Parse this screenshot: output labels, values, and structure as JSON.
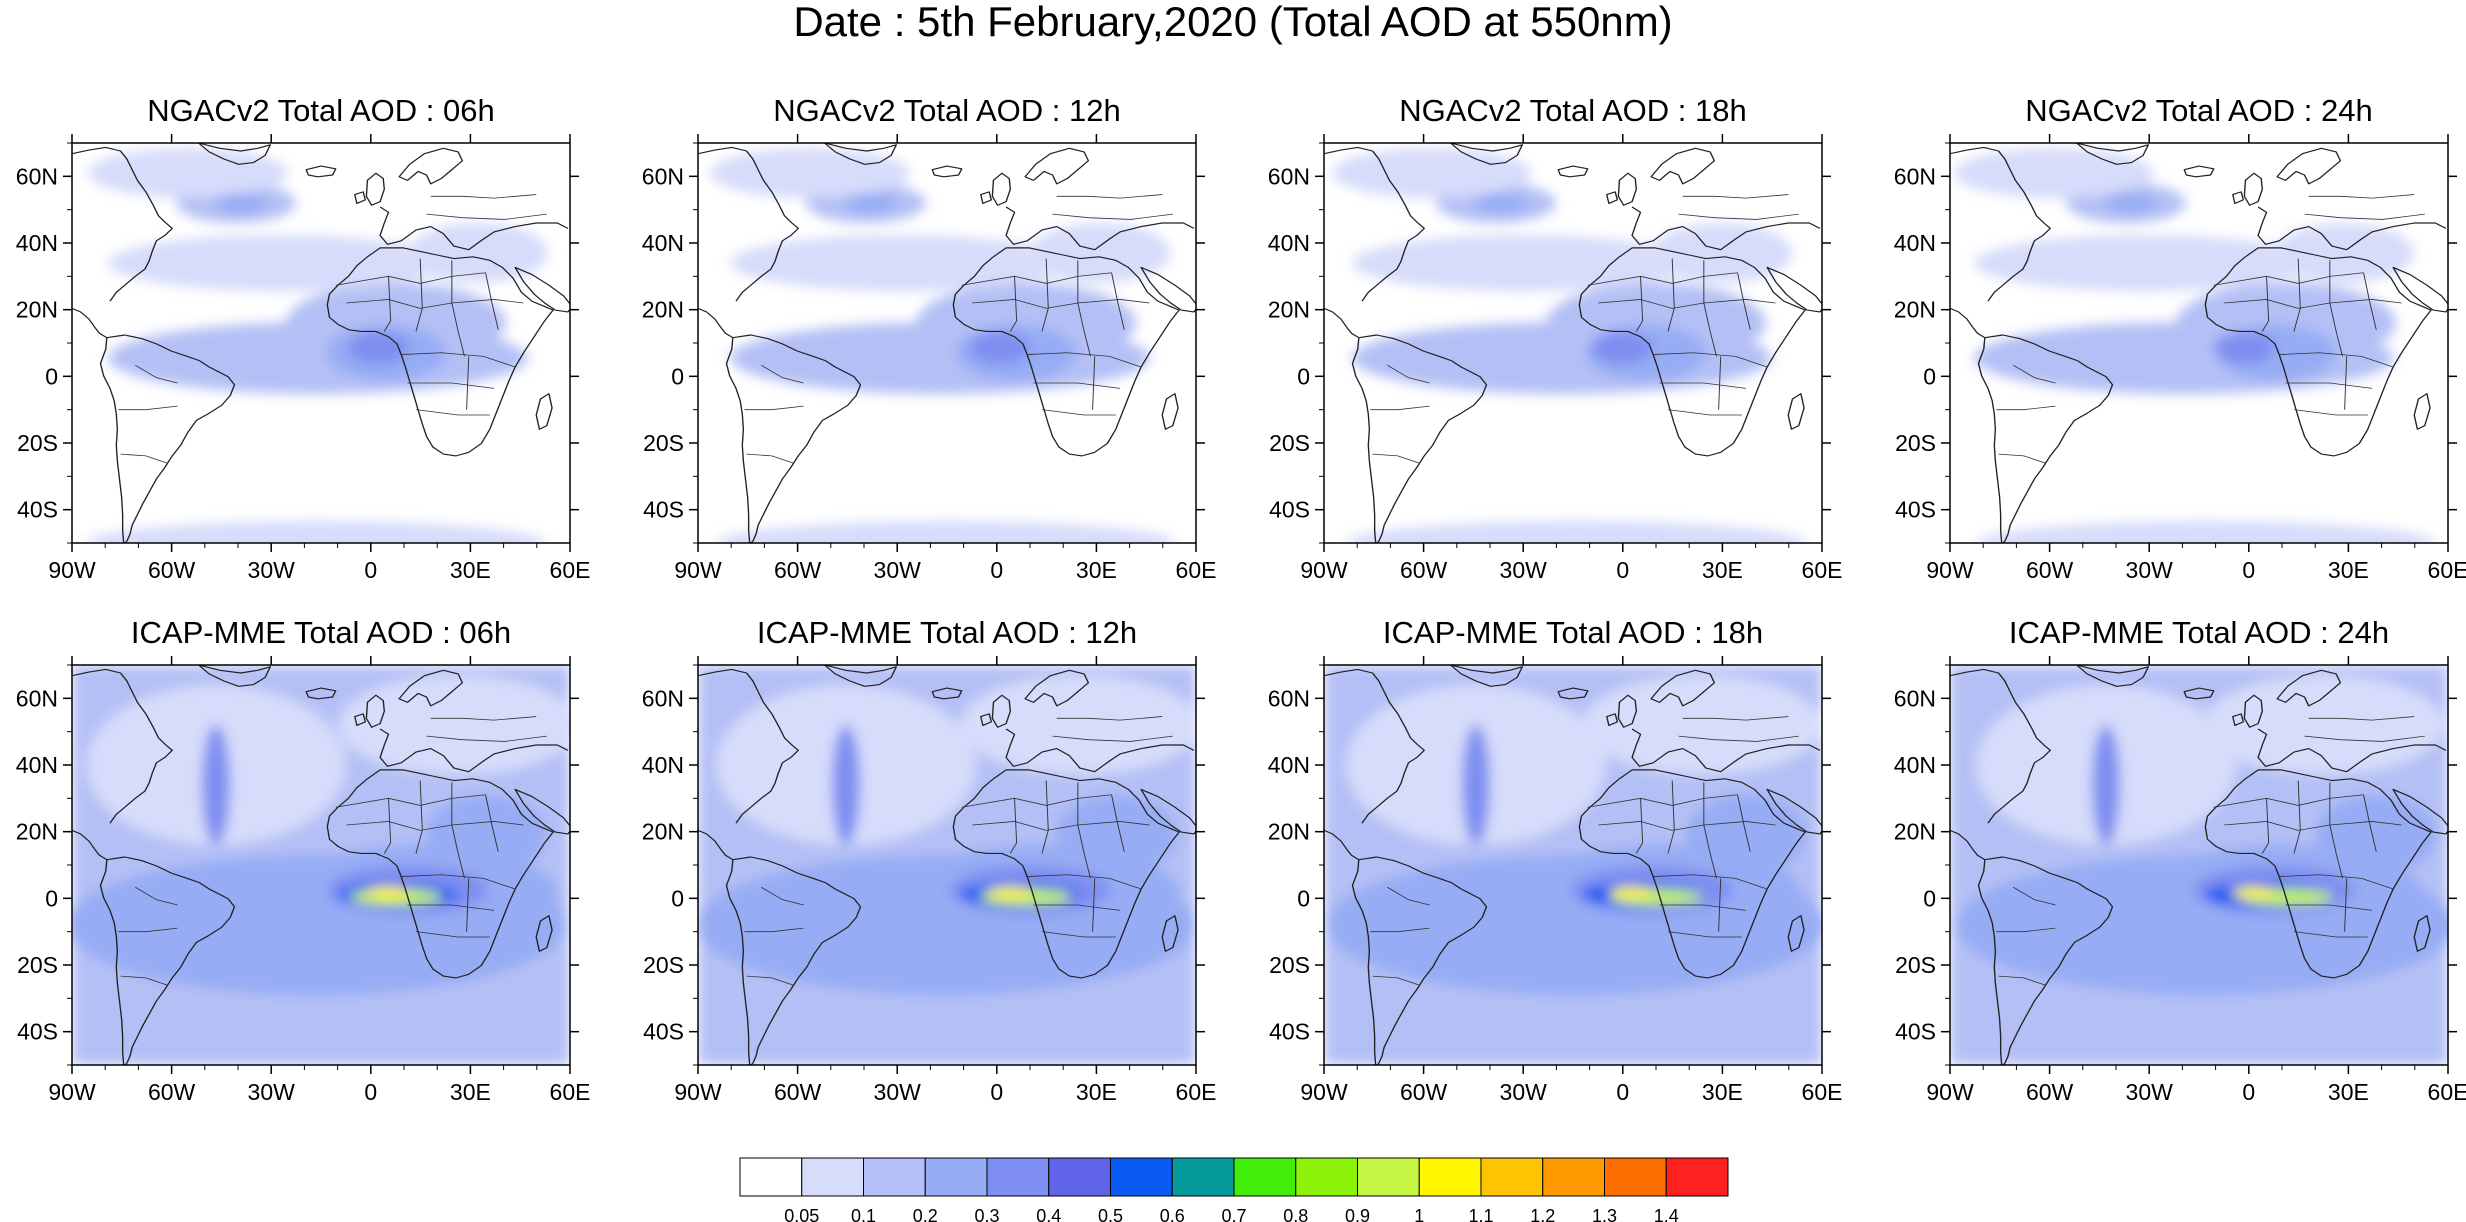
{
  "title": "Date : 5th February,2020 (Total AOD at 550nm)",
  "lon_ticks": [
    "90W",
    "60W",
    "30W",
    "0",
    "30E",
    "60E"
  ],
  "lat_ticks": [
    "60N",
    "40N",
    "20N",
    "0",
    "20S",
    "40S"
  ],
  "map_extent": {
    "lon": [
      -90,
      60
    ],
    "lat": [
      -50,
      70
    ]
  },
  "rows": [
    {
      "model": "NGACv2",
      "panels": [
        {
          "title": "NGACv2 Total AOD : 06h"
        },
        {
          "title": "NGACv2 Total AOD : 12h"
        },
        {
          "title": "NGACv2 Total AOD : 18h"
        },
        {
          "title": "NGACv2 Total AOD : 24h"
        }
      ]
    },
    {
      "model": "ICAP-MME",
      "panels": [
        {
          "title": "ICAP-MME Total AOD : 06h"
        },
        {
          "title": "ICAP-MME Total AOD : 12h"
        },
        {
          "title": "ICAP-MME Total AOD : 18h"
        },
        {
          "title": "ICAP-MME Total AOD : 24h"
        }
      ]
    }
  ],
  "colorbar": {
    "labels": [
      "0.05",
      "0.1",
      "0.2",
      "0.3",
      "0.4",
      "0.5",
      "0.6",
      "0.7",
      "0.8",
      "0.9",
      "1",
      "1.1",
      "1.2",
      "1.3",
      "1.4"
    ],
    "colors": [
      "#ffffff",
      "#d6dcfa",
      "#b4c0f5",
      "#96acf4",
      "#7e8ef1",
      "#5f64e8",
      "#0a5af5",
      "#069a9a",
      "#41ee0a",
      "#8cf20a",
      "#c3f542",
      "#fff600",
      "#ffc400",
      "#ff9a00",
      "#ff6e00",
      "#ff2020"
    ]
  }
}
